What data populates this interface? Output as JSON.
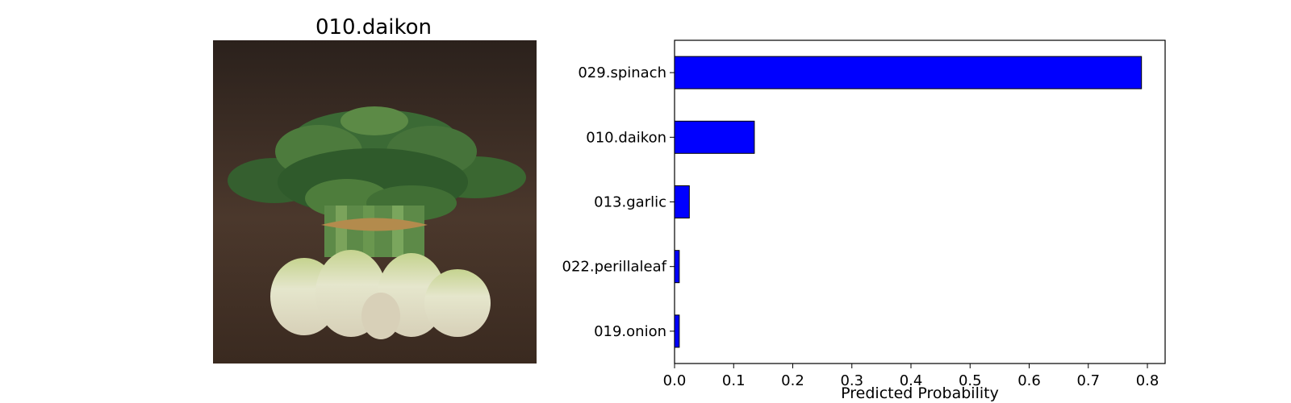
{
  "image_panel": {
    "title": "010.daikon"
  },
  "chart_data": {
    "type": "bar",
    "orientation": "horizontal",
    "categories": [
      "029.spinach",
      "010.daikon",
      "013.garlic",
      "022.perillaleaf",
      "019.onion"
    ],
    "values": [
      0.79,
      0.135,
      0.025,
      0.008,
      0.008
    ],
    "title": "",
    "xlabel": "Predicted Probability",
    "ylabel": "",
    "xlim": [
      0,
      0.83
    ],
    "xticks": [
      0.0,
      0.1,
      0.2,
      0.3,
      0.4,
      0.5,
      0.6,
      0.7,
      0.8
    ],
    "xtick_labels": [
      "0.0",
      "0.1",
      "0.2",
      "0.3",
      "0.4",
      "0.5",
      "0.6",
      "0.7",
      "0.8"
    ],
    "bar_color": "#0000ff",
    "bar_edge_color": "#000000",
    "grid": false,
    "legend": "none"
  },
  "colors": {
    "photo_background": "#3b2b22",
    "leaf_dark": "#2f5b2a",
    "leaf_light": "#4f7b3a",
    "root_light": "#e7e1c8",
    "root_green": "#bdd08b",
    "twine": "#b38b4d"
  }
}
